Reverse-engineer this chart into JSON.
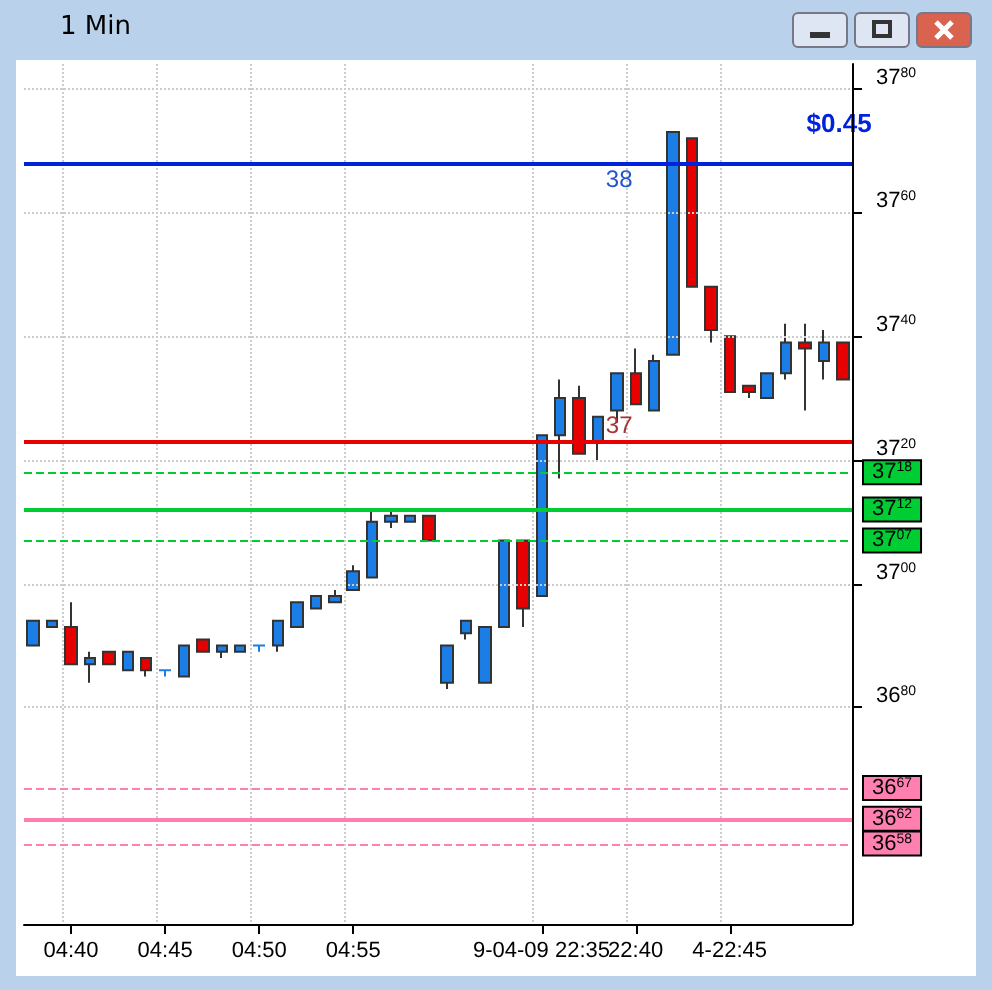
{
  "chart_data": {
    "type": "candlestick",
    "title": "1 Min",
    "categories": [
      null,
      null,
      "04:40",
      null,
      null,
      null,
      null,
      "04:45",
      null,
      null,
      null,
      null,
      "04:50",
      null,
      null,
      null,
      null,
      "04:55",
      null,
      null,
      null,
      null,
      null,
      null,
      null,
      null,
      null,
      "9-04-09 22:35",
      null,
      null,
      null,
      null,
      "22:40",
      null,
      null,
      null,
      null,
      "4-22:45",
      null,
      null,
      null,
      null,
      null,
      null
    ],
    "ohlc": [
      [
        3690,
        3694,
        3690,
        3694
      ],
      [
        3693,
        3694,
        3693,
        3694
      ],
      [
        3693,
        3697,
        3687,
        3687
      ],
      [
        3687,
        3689,
        3684,
        3688
      ],
      [
        3689,
        3689,
        3687,
        3687
      ],
      [
        3686,
        3689,
        3686,
        3689
      ],
      [
        3688,
        3688,
        3685,
        3686
      ],
      [
        3686,
        3686,
        3685,
        3686
      ],
      [
        3685,
        3690,
        3685,
        3690
      ],
      [
        3691,
        3691,
        3689,
        3689
      ],
      [
        3689,
        3690,
        3688,
        3690
      ],
      [
        3689,
        3690,
        3689,
        3690
      ],
      [
        3690,
        3690,
        3689,
        3690
      ],
      [
        3690,
        3694,
        3689,
        3694
      ],
      [
        3693,
        3697,
        3693,
        3697
      ],
      [
        3696,
        3698,
        3696,
        3698
      ],
      [
        3697,
        3699,
        3697,
        3698
      ],
      [
        3699,
        3703,
        3699,
        3702
      ],
      [
        3701,
        3712,
        3701,
        3710
      ],
      [
        3710,
        3712,
        3709,
        3711
      ],
      [
        3710,
        3711,
        3710,
        3711
      ],
      [
        3711,
        3711,
        3707,
        3707
      ],
      [
        3684,
        3690,
        3683,
        3690
      ],
      [
        3692,
        3694,
        3691,
        3694
      ],
      [
        3684,
        3693,
        3684,
        3693
      ],
      [
        3693,
        3707,
        3693,
        3707
      ],
      [
        3707,
        3707,
        3693,
        3696
      ],
      [
        3698,
        3724,
        3698,
        3724
      ],
      [
        3724,
        3733,
        3717,
        3730
      ],
      [
        3730,
        3732,
        3721,
        3721
      ],
      [
        3723,
        3727,
        3720,
        3727
      ],
      [
        3728,
        3734,
        3726,
        3734
      ],
      [
        3734,
        3738,
        3729,
        3729
      ],
      [
        3728,
        3737,
        3728,
        3736
      ],
      [
        3737,
        3773,
        3737,
        3773
      ],
      [
        3772,
        3772,
        3748,
        3748
      ],
      [
        3748,
        3748,
        3739,
        3741
      ],
      [
        3740,
        3740,
        3731,
        3731
      ],
      [
        3732,
        3732,
        3730,
        3731
      ],
      [
        3730,
        3734,
        3730,
        3734
      ],
      [
        3734,
        3742,
        3733,
        3739
      ],
      [
        3739,
        3742,
        3728,
        3738
      ],
      [
        3736,
        3741,
        3733,
        3739
      ],
      [
        3739,
        3739,
        3733,
        3733
      ]
    ],
    "colors": [
      "#1a7ee6",
      "#1a7ee6",
      "#e60000",
      "#1a7ee6",
      "#e60000",
      "#1a7ee6",
      "#e60000",
      "#1a7ee6",
      "#1a7ee6",
      "#e60000",
      "#1a7ee6",
      "#1a7ee6",
      "#1a7ee6",
      "#1a7ee6",
      "#1a7ee6",
      "#1a7ee6",
      "#1a7ee6",
      "#1a7ee6",
      "#1a7ee6",
      "#1a7ee6",
      "#1a7ee6",
      "#e60000",
      "#1a7ee6",
      "#1a7ee6",
      "#1a7ee6",
      "#1a7ee6",
      "#e60000",
      "#1a7ee6",
      "#1a7ee6",
      "#e60000",
      "#1a7ee6",
      "#1a7ee6",
      "#e60000",
      "#1a7ee6",
      "#1a7ee6",
      "#e60000",
      "#e60000",
      "#e60000",
      "#e60000",
      "#1a7ee6",
      "#1a7ee6",
      "#e60000",
      "#1a7ee6",
      "#e60000"
    ],
    "ylim": [
      3645,
      3784
    ],
    "yticks": [
      3680,
      3700,
      3720,
      3740,
      3760,
      3780
    ],
    "ref_lines": [
      {
        "axis": "y",
        "value": 3768,
        "label": null,
        "color": "#0022dd",
        "line_style": "solid"
      },
      {
        "axis": "y",
        "value": 3723,
        "label": null,
        "color": "#e60000",
        "line_style": "solid"
      },
      {
        "axis": "y",
        "value": 3718,
        "label": "3718",
        "color": "#00cc33",
        "line_style": "dashed"
      },
      {
        "axis": "y",
        "value": 3712,
        "label": "3712",
        "color": "#00cc33",
        "line_style": "solid"
      },
      {
        "axis": "y",
        "value": 3707,
        "label": "3707",
        "color": "#00cc33",
        "line_style": "dashed"
      },
      {
        "axis": "y",
        "value": 3667,
        "label": "3667",
        "color": "#ff80b0",
        "line_style": "dashed"
      },
      {
        "axis": "y",
        "value": 3662,
        "label": "3662",
        "color": "#ff80b0",
        "line_style": "solid"
      },
      {
        "axis": "y",
        "value": 3658,
        "label": "3658",
        "color": "#ff80b0",
        "line_style": "dashed"
      }
    ],
    "annotations": [
      {
        "text": "$0.45",
        "y": 3768
      },
      {
        "text": "38",
        "y": 3768
      },
      {
        "text": "37",
        "y": 3723
      }
    ],
    "grid": true
  }
}
